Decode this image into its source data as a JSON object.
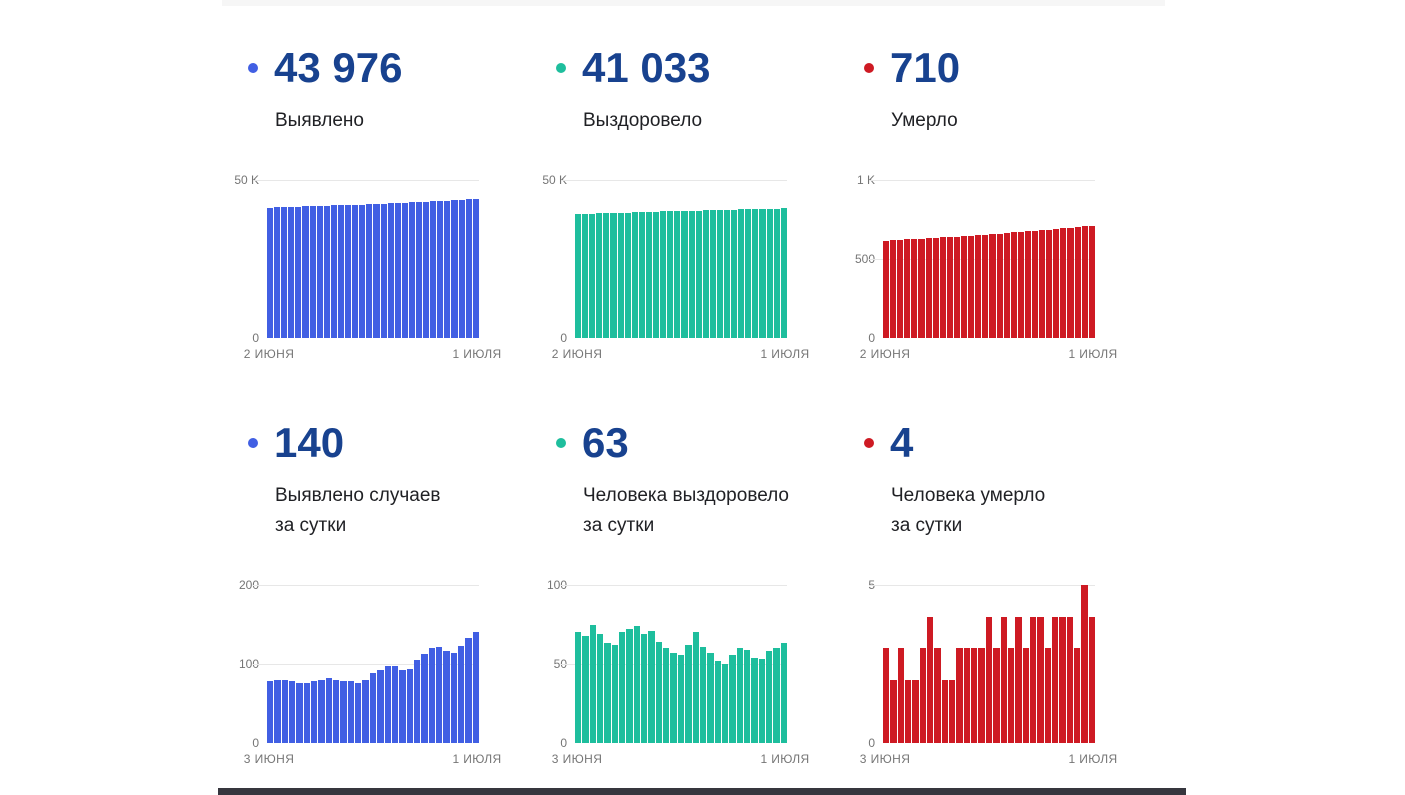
{
  "page": {
    "background": "#ffffff",
    "top_edge_bar_color": "#f6f6f6",
    "bottom_edge_bar_color": "#36363e",
    "stat_value_color": "#18428F",
    "axis_text_color": "#757575",
    "gridline_color": "#e7e7e7"
  },
  "panels": [
    {
      "dot_color": "#415FE3",
      "value": "43 976",
      "label_lines": [
        "Выявлено"
      ]
    },
    {
      "dot_color": "#1EBE9D",
      "value": "41 033",
      "label_lines": [
        "Выздоровело"
      ]
    },
    {
      "dot_color": "#CE1A23",
      "value": "710",
      "label_lines": [
        "Умерло"
      ]
    },
    {
      "dot_color": "#415FE3",
      "value": "140",
      "label_lines": [
        "Выявлено случаев",
        "за сутки"
      ]
    },
    {
      "dot_color": "#1EBE9D",
      "value": "63",
      "label_lines": [
        "Человека выздоровело",
        "за сутки"
      ]
    },
    {
      "dot_color": "#CE1A23",
      "value": "4",
      "label_lines": [
        "Человека умерло",
        "за сутки"
      ]
    }
  ],
  "chart_data": [
    {
      "type": "bar",
      "title": "Выявлено (всего)",
      "bar_color": "#415FE3",
      "ymax": 50000,
      "yticks": [
        {
          "label": "50 K",
          "value": 50000
        },
        {
          "label": "0",
          "value": 0
        }
      ],
      "x_start_label": "2 ИЮНЯ",
      "x_end_label": "1 ИЮЛЯ",
      "grid": true,
      "values": [
        41231,
        41309,
        41389,
        41469,
        41547,
        41623,
        41699,
        41777,
        41857,
        41939,
        42019,
        42097,
        42175,
        42251,
        42331,
        42419,
        42511,
        42608,
        42705,
        42797,
        42891,
        42996,
        43109,
        43229,
        43350,
        43466,
        43580,
        43703,
        43836,
        43976
      ]
    },
    {
      "type": "bar",
      "title": "Выздоровело (всего)",
      "bar_color": "#1EBE9D",
      "ymax": 50000,
      "yticks": [
        {
          "label": "50 K",
          "value": 50000
        },
        {
          "label": "0",
          "value": 0
        }
      ],
      "x_start_label": "2 ИЮНЯ",
      "x_end_label": "1 ИЮЛЯ",
      "grid": true,
      "values": [
        39218,
        39288,
        39356,
        39431,
        39500,
        39563,
        39625,
        39695,
        39767,
        39841,
        39910,
        39981,
        40045,
        40105,
        40162,
        40218,
        40280,
        40350,
        40411,
        40468,
        40520,
        40570,
        40626,
        40686,
        40745,
        40799,
        40852,
        40910,
        40970,
        41033
      ]
    },
    {
      "type": "bar",
      "title": "Умерло (всего)",
      "bar_color": "#CE1A23",
      "ymax": 1000,
      "yticks": [
        {
          "label": "1 K",
          "value": 1000
        },
        {
          "label": "500",
          "value": 500
        },
        {
          "label": "0",
          "value": 0
        }
      ],
      "x_start_label": "2 ИЮНЯ",
      "x_end_label": "1 ИЮЛЯ",
      "grid": true,
      "values": [
        616,
        619,
        621,
        624,
        626,
        628,
        631,
        635,
        638,
        640,
        642,
        645,
        648,
        651,
        654,
        658,
        661,
        665,
        668,
        672,
        675,
        679,
        683,
        686,
        690,
        694,
        698,
        701,
        706,
        710
      ]
    },
    {
      "type": "bar",
      "title": "Выявлено случаев за сутки",
      "bar_color": "#415FE3",
      "ymax": 200,
      "yticks": [
        {
          "label": "200",
          "value": 200
        },
        {
          "label": "100",
          "value": 100
        },
        {
          "label": "0",
          "value": 0
        }
      ],
      "x_start_label": "3 ИЮНЯ",
      "x_end_label": "1 ИЮЛЯ",
      "grid": true,
      "values": [
        78,
        80,
        80,
        78,
        76,
        76,
        78,
        80,
        82,
        80,
        78,
        78,
        76,
        80,
        88,
        92,
        97,
        97,
        92,
        94,
        105,
        113,
        120,
        121,
        116,
        114,
        123,
        133,
        140
      ]
    },
    {
      "type": "bar",
      "title": "Человека выздоровело за сутки",
      "bar_color": "#1EBE9D",
      "ymax": 100,
      "yticks": [
        {
          "label": "100",
          "value": 100
        },
        {
          "label": "50",
          "value": 50
        },
        {
          "label": "0",
          "value": 0
        }
      ],
      "x_start_label": "3 ИЮНЯ",
      "x_end_label": "1 ИЮЛЯ",
      "grid": true,
      "values": [
        70,
        68,
        75,
        69,
        63,
        62,
        70,
        72,
        74,
        69,
        71,
        64,
        60,
        57,
        56,
        62,
        70,
        61,
        57,
        52,
        50,
        56,
        60,
        59,
        54,
        53,
        58,
        60,
        63
      ]
    },
    {
      "type": "bar",
      "title": "Человека умерло за сутки",
      "bar_color": "#CE1A23",
      "ymax": 5,
      "yticks": [
        {
          "label": "5",
          "value": 5
        },
        {
          "label": "0",
          "value": 0
        }
      ],
      "x_start_label": "3 ИЮНЯ",
      "x_end_label": "1 ИЮЛЯ",
      "grid": true,
      "values": [
        3,
        2,
        3,
        2,
        2,
        3,
        4,
        3,
        2,
        2,
        3,
        3,
        3,
        3,
        4,
        3,
        4,
        3,
        4,
        3,
        4,
        4,
        3,
        4,
        4,
        4,
        3,
        5,
        4
      ]
    }
  ]
}
